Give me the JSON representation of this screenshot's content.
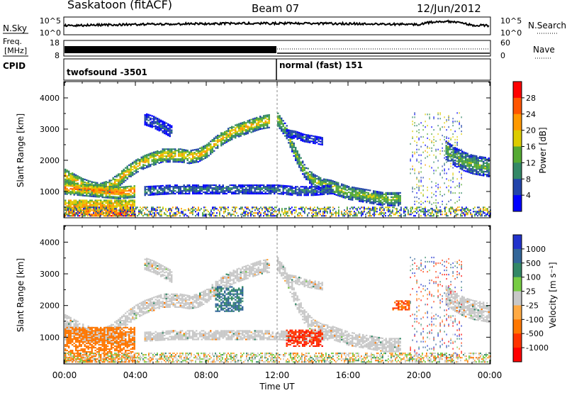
{
  "header": {
    "station": "Saskatoon (fitACF)",
    "beam": "Beam 07",
    "date": "12/Jun/2012"
  },
  "noise_panel": {
    "left_label": "N.Sky",
    "right_label": "N.Search",
    "left_ticks": [
      "10^5",
      "10^0"
    ],
    "right_ticks": [
      "10^5",
      "10^0"
    ]
  },
  "freq_panel": {
    "left_label_1": "Freq.",
    "left_label_2": "[MHz]",
    "left_ticks": [
      "18",
      "8"
    ],
    "right_label": "Nave",
    "right_ticks": [
      "60",
      "0"
    ]
  },
  "cpid_panel": {
    "label": "CPID",
    "program_1": "twofsound -3501",
    "program_2": "normal (fast) 151"
  },
  "power_panel": {
    "ylabel": "Slant Range [km]",
    "yticks": [
      "4000",
      "3000",
      "2000",
      "1000"
    ],
    "colorbar_label": "Power [dB]",
    "colorbar_ticks": [
      "28",
      "24",
      "20",
      "16",
      "12",
      "8",
      "4"
    ],
    "colors": [
      "#0000ff",
      "#2244aa",
      "#338866",
      "#55aa33",
      "#ddcc00",
      "#ff9900",
      "#ff5500",
      "#ff0000"
    ]
  },
  "velocity_panel": {
    "ylabel": "Slant Range [km]",
    "yticks": [
      "4000",
      "3000",
      "2000",
      "1000"
    ],
    "colorbar_label": "Velocity [m s⁻¹]",
    "colorbar_ticks": [
      "1000",
      "500",
      "100",
      "25",
      "-25",
      "-100",
      "-500",
      "-1000"
    ],
    "colors": [
      "#2233cc",
      "#336699",
      "#338866",
      "#77cc44",
      "#c8c8c8",
      "#ffaa44",
      "#ff7700",
      "#ff3300",
      "#ff0000"
    ]
  },
  "time_axis": {
    "xlabel": "Time UT",
    "xticks": [
      "00:00",
      "04:00",
      "08:00",
      "12:00",
      "16:00",
      "20:00",
      "00:00"
    ]
  },
  "chart_data": [
    {
      "type": "heatmap",
      "title": "Saskatoon (fitACF) Beam 07 12/Jun/2012",
      "xlabel": "Time UT",
      "ylabel": "Slant Range [km]",
      "quantity": "Power [dB]",
      "x_range_hours": [
        0,
        24
      ],
      "ylim": [
        180,
        4500
      ],
      "colorbar_range": [
        0,
        30
      ],
      "bands": [
        {
          "t": [
            0,
            0.5,
            1,
            1.5,
            2,
            2.5,
            3,
            3.5,
            4,
            4.5,
            5,
            5.5,
            6,
            6.5,
            7,
            7.5,
            8,
            8.5,
            9,
            9.5,
            10,
            10.5,
            11,
            11.5
          ],
          "r": [
            1500,
            1350,
            1200,
            1100,
            1050,
            1150,
            1350,
            1600,
            1800,
            1950,
            2050,
            2150,
            2150,
            2150,
            2100,
            2150,
            2300,
            2550,
            2750,
            2900,
            3000,
            3100,
            3200,
            3250
          ],
          "width_km": 220,
          "power_db": 18
        },
        {
          "t": [
            0,
            1,
            2,
            3,
            4
          ],
          "r": [
            1100,
            1050,
            1000,
            950,
            1000
          ],
          "width_km": 200,
          "power_db": 22
        },
        {
          "t": [
            12,
            12.5,
            13,
            13.5,
            14,
            14.5,
            15,
            15.5,
            16,
            16.5,
            17,
            17.5,
            18,
            18.5,
            19
          ],
          "r": [
            3300,
            2900,
            2200,
            1650,
            1350,
            1200,
            1150,
            1050,
            950,
            900,
            850,
            800,
            750,
            750,
            750
          ],
          "width_km": 220,
          "power_db": 14
        },
        {
          "t": [
            4.5,
            6,
            8,
            10,
            11,
            12,
            13,
            14,
            15
          ],
          "r": [
            1000,
            1050,
            1050,
            1050,
            1050,
            1050,
            1000,
            1000,
            1050
          ],
          "width_km": 140,
          "power_db": 8
        },
        {
          "t": [
            21.5,
            22,
            22.5,
            23,
            23.5,
            24
          ],
          "r": [
            2300,
            2100,
            1950,
            1850,
            1800,
            1750
          ],
          "width_km": 300,
          "power_db": 12
        },
        {
          "t": [
            4.5,
            5,
            5.5,
            6
          ],
          "r": [
            3300,
            3200,
            3050,
            2900
          ],
          "width_km": 180,
          "power_db": 6
        },
        {
          "t": [
            12.5,
            13,
            13.5,
            14,
            14.5
          ],
          "r": [
            2850,
            2800,
            2700,
            2650,
            2600
          ],
          "width_km": 120,
          "power_db": 6
        }
      ],
      "near_range_echo": {
        "t_range": [
          0,
          4
        ],
        "r_range": [
          200,
          700
        ],
        "power_db": 28
      }
    },
    {
      "type": "heatmap",
      "title": "Saskatoon (fitACF) Beam 07 12/Jun/2012",
      "xlabel": "Time UT",
      "ylabel": "Slant Range [km]",
      "quantity": "Velocity [m s⁻¹]",
      "x_range_hours": [
        0,
        24
      ],
      "ylim": [
        180,
        4500
      ],
      "colorbar_range": [
        -1000,
        1000
      ],
      "dominant_velocity": "-25 to 25 (ground scatter)",
      "features": [
        {
          "t_range": [
            8.5,
            10
          ],
          "r_range": [
            1800,
            2600
          ],
          "velocity": 300
        },
        {
          "t_range": [
            12.5,
            14.5
          ],
          "r_range": [
            700,
            1200
          ],
          "velocity": -600
        },
        {
          "t_range": [
            0,
            4
          ],
          "r_range": [
            200,
            1300
          ],
          "velocity": -150
        },
        {
          "t_range": [
            18.5,
            19.5
          ],
          "r_range": [
            1850,
            2150
          ],
          "velocity": -300
        }
      ]
    }
  ]
}
